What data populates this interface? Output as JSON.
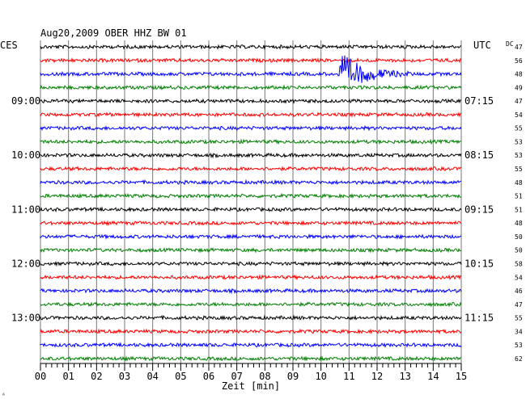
{
  "chart_data": {
    "type": "line",
    "title": "Aug20,2009   OBER HHZ BW 01",
    "left_timezone": "CES",
    "right_timezone": "UTC",
    "dc_label": "DC",
    "xlabel": "Zeit [min]",
    "x_ticks": [
      "00",
      "01",
      "02",
      "03",
      "04",
      "05",
      "06",
      "07",
      "08",
      "09",
      "10",
      "11",
      "12",
      "13",
      "14",
      "15"
    ],
    "xlim": [
      0,
      15
    ],
    "grid": true,
    "trace_colors": [
      "#000000",
      "#ff0000",
      "#0000ff",
      "#008000"
    ],
    "left_time_labels": [
      {
        "row": 4,
        "text": "09:00"
      },
      {
        "row": 8,
        "text": "10:00"
      },
      {
        "row": 12,
        "text": "11:00"
      },
      {
        "row": 16,
        "text": "12:00"
      },
      {
        "row": 20,
        "text": "13:00"
      }
    ],
    "right_time_labels": [
      {
        "row": 4,
        "text": "07:15"
      },
      {
        "row": 8,
        "text": "08:15"
      },
      {
        "row": 12,
        "text": "09:15"
      },
      {
        "row": 16,
        "text": "10:15"
      },
      {
        "row": 20,
        "text": "11:15"
      }
    ],
    "dc_offsets": [
      47,
      56,
      48,
      49,
      47,
      54,
      55,
      53,
      53,
      55,
      48,
      51,
      51,
      48,
      50,
      50,
      58,
      54,
      46,
      47,
      55,
      34,
      53,
      62
    ],
    "event": {
      "row": 2,
      "start_min": 10.6,
      "peak_min": 10.75,
      "end_min": 13.2
    }
  },
  "footer": {
    "mark": "ᴬ"
  }
}
